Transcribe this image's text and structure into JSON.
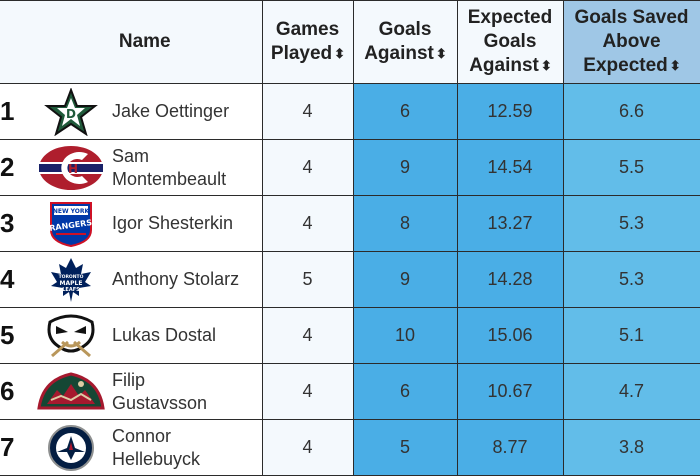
{
  "headers": {
    "name": "Name",
    "gp_line1": "Games",
    "gp_line2": "Played",
    "ga_line1": "Goals",
    "ga_line2": "Against",
    "xga_line1": "Expected",
    "xga_line2": "Goals",
    "xga_line3": "Against",
    "gsax_line1": "Goals Saved",
    "gsax_line2": "Above",
    "gsax_line3": "Expected",
    "sort_glyph": "⬍"
  },
  "rows": [
    {
      "rank": "1",
      "name_line1": "Jake Oettinger",
      "name_line2": "",
      "logo": "dallas-stars-logo-icon",
      "gp": "4",
      "ga": "6",
      "xga": "12.59",
      "gsax": "6.6"
    },
    {
      "rank": "2",
      "name_line1": "Sam",
      "name_line2": "Montembeault",
      "logo": "montreal-canadiens-logo-icon",
      "gp": "4",
      "ga": "9",
      "xga": "14.54",
      "gsax": "5.5"
    },
    {
      "rank": "3",
      "name_line1": "Igor Shesterkin",
      "name_line2": "",
      "logo": "new-york-rangers-logo-icon",
      "gp": "4",
      "ga": "8",
      "xga": "13.27",
      "gsax": "5.3"
    },
    {
      "rank": "4",
      "name_line1": "Anthony Stolarz",
      "name_line2": "",
      "logo": "toronto-maple-leafs-logo-icon",
      "gp": "5",
      "ga": "9",
      "xga": "14.28",
      "gsax": "5.3"
    },
    {
      "rank": "5",
      "name_line1": "Lukas Dostal",
      "name_line2": "",
      "logo": "anaheim-ducks-logo-icon",
      "gp": "4",
      "ga": "10",
      "xga": "15.06",
      "gsax": "5.1"
    },
    {
      "rank": "6",
      "name_line1": "Filip",
      "name_line2": "Gustavsson",
      "logo": "minnesota-wild-logo-icon",
      "gp": "4",
      "ga": "6",
      "xga": "10.67",
      "gsax": "4.7"
    },
    {
      "rank": "7",
      "name_line1": "Connor",
      "name_line2": "Hellebuyck",
      "logo": "winnipeg-jets-logo-icon",
      "gp": "4",
      "ga": "5",
      "xga": "8.77",
      "gsax": "3.8"
    }
  ],
  "logo_text": {
    "rangers_top": "NEW YORK",
    "rangers_main": "RANGERS",
    "leafs_line1": "TORONTO",
    "leafs_line2": "MAPLE",
    "leafs_line3": "LEAFS"
  },
  "colors": {
    "header_bg": "#f4f9fd",
    "gsax_header_bg": "#9fc7e6",
    "ga_cell": "#4aaee6",
    "gsax_cell": "#62bde9"
  }
}
